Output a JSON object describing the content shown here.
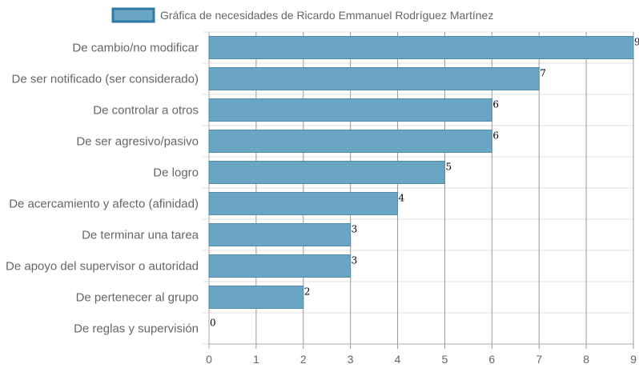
{
  "chart_data": {
    "type": "bar",
    "orientation": "horizontal",
    "legend": {
      "label": "Gráfica de necesidades de Ricardo Emmanuel Rodríguez Martínez",
      "position": "top"
    },
    "categories": [
      "De cambio/no modificar",
      "De ser notificado (ser considerado)",
      "De controlar a otros",
      "De ser agresivo/pasivo",
      "De logro",
      "De acercamiento y afecto (afinidad)",
      "De terminar una tarea",
      "De apoyo del supervisor o autoridad",
      "De pertenecer al grupo",
      "De reglas y supervisión"
    ],
    "values": [
      9,
      7,
      6,
      6,
      5,
      4,
      3,
      3,
      2,
      0
    ],
    "xlim": [
      0,
      9
    ],
    "xticks": [
      0,
      1,
      2,
      3,
      4,
      5,
      6,
      7,
      8,
      9
    ],
    "grid": true,
    "colors": {
      "bar_fill": "#6aa6c4",
      "bar_stroke": "#4f8cab",
      "legend_fill": "#6aa6c4",
      "legend_stroke": "#2e7aa8",
      "grid": "#e2e2e2",
      "grid_vertical": "#999999",
      "text": "#666666"
    }
  }
}
